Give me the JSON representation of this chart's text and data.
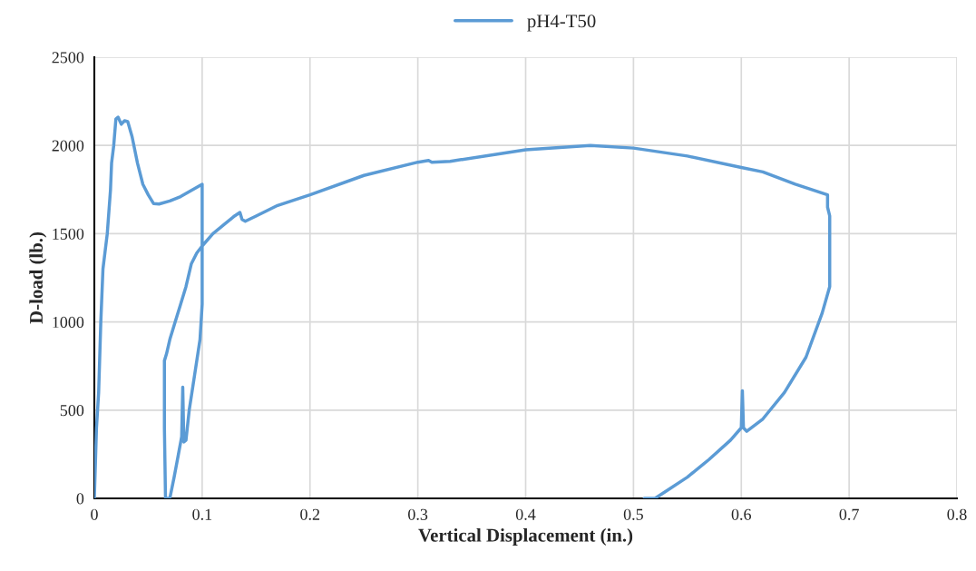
{
  "chart_data": {
    "type": "line",
    "xlabel": "Vertical Displacement (in.)",
    "ylabel": "D-load (lb.)",
    "xlim": [
      0,
      0.8
    ],
    "xticks": [
      {
        "value": 0,
        "label": "0"
      },
      0.1,
      0.2,
      0.3,
      0.4,
      0.5,
      0.6,
      0.7,
      0.8
    ],
    "ylim": [
      0,
      2500
    ],
    "yticks": [
      0,
      500,
      1000,
      1500,
      2000,
      2500
    ],
    "grid": true,
    "legend": "top",
    "marker": "none",
    "line_style": "solid",
    "series": [
      {
        "name": "pH4-T50",
        "color": "#5b9bd5",
        "x": [
          0,
          0.002,
          0.004,
          0.006,
          0.008,
          0.012,
          0.015,
          0.016,
          0.018,
          0.02,
          0.022,
          0.025,
          0.028,
          0.031,
          0.035,
          0.04,
          0.045,
          0.05,
          0.055,
          0.06,
          0.07,
          0.08,
          0.09,
          0.1,
          0.1,
          0.1,
          0.098,
          0.093,
          0.088,
          0.085,
          0.083,
          0.082,
          0.081,
          0.078,
          0.074,
          0.07,
          0.066,
          0.065,
          0.065,
          0.067,
          0.07,
          0.075,
          0.08,
          0.085,
          0.09,
          0.095,
          0.1,
          0.11,
          0.12,
          0.13,
          0.135,
          0.137,
          0.14,
          0.15,
          0.17,
          0.2,
          0.25,
          0.3,
          0.31,
          0.313,
          0.33,
          0.4,
          0.46,
          0.5,
          0.55,
          0.6,
          0.62,
          0.65,
          0.68,
          0.68,
          0.682,
          0.682,
          0.675,
          0.66,
          0.64,
          0.62,
          0.605,
          0.602,
          0.601,
          0.6,
          0.59,
          0.57,
          0.55,
          0.53,
          0.52,
          0.51
        ],
        "values": [
          0,
          400,
          600,
          1000,
          1300,
          1500,
          1750,
          1900,
          2000,
          2150,
          2160,
          2120,
          2140,
          2135,
          2050,
          1900,
          1780,
          1720,
          1670,
          1668,
          1685,
          1710,
          1745,
          1780,
          1700,
          1100,
          900,
          700,
          500,
          330,
          320,
          630,
          350,
          250,
          120,
          0,
          0,
          400,
          780,
          820,
          900,
          1000,
          1100,
          1200,
          1330,
          1390,
          1430,
          1500,
          1550,
          1600,
          1620,
          1580,
          1570,
          1600,
          1660,
          1720,
          1830,
          1905,
          1915,
          1905,
          1910,
          1975,
          2000,
          1985,
          1940,
          1875,
          1850,
          1780,
          1720,
          1650,
          1600,
          1200,
          1050,
          800,
          600,
          450,
          380,
          400,
          610,
          400,
          330,
          220,
          120,
          40,
          0,
          0
        ]
      }
    ]
  }
}
